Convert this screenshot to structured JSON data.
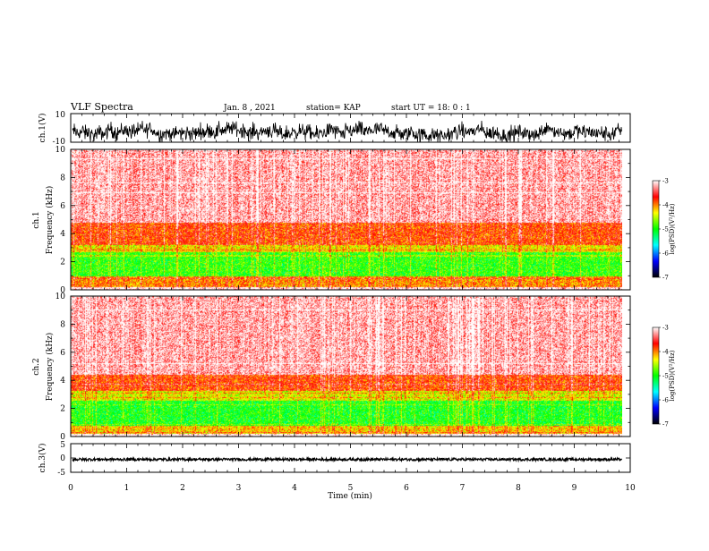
{
  "header": {
    "title": "VLF Spectra",
    "date": "Jan. 8 , 2021",
    "station": "station= KAP",
    "start": "start UT =  18: 0  : 1"
  },
  "chart_data": [
    {
      "type": "line",
      "panel": "ch1-waveform",
      "ylabel": "ch.1(V)",
      "ylim": [
        -10,
        10
      ],
      "yticks": [
        "10",
        "-10"
      ],
      "xlim": [
        0,
        10
      ],
      "data_end_min": 9.85,
      "trace": "dense noisy waveform fluctuating roughly between -10 and 9 V",
      "color": "#000000"
    },
    {
      "type": "heatmap",
      "panel": "ch1-spectrogram",
      "ylabel": "ch.1\nFrequency (kHz)",
      "ylim": [
        0,
        10
      ],
      "yticks": [
        "0",
        "2",
        "4",
        "6",
        "8",
        "10"
      ],
      "xlim": [
        0,
        10
      ],
      "bands": [
        {
          "from_khz": 0.2,
          "to_khz": 1.0,
          "level": -4.0
        },
        {
          "from_khz": 1.0,
          "to_khz": 2.7,
          "level": -4.9
        },
        {
          "from_khz": 2.7,
          "to_khz": 3.2,
          "level": -4.3
        },
        {
          "from_khz": 3.2,
          "to_khz": 4.8,
          "level": -3.8
        },
        {
          "from_khz": 4.8,
          "to_khz": 10.0,
          "level": -3.2
        }
      ],
      "colorbar": {
        "label": "log(PSD)(V²/Hz)",
        "range": [
          -7,
          -3
        ],
        "ticks": [
          "-3",
          "-4",
          "-5",
          "-6",
          "-7"
        ],
        "colors": [
          "#ffffff",
          "#ff0000",
          "#ffff00",
          "#00ff00",
          "#00ffff",
          "#0000ff",
          "#000000"
        ]
      }
    },
    {
      "type": "heatmap",
      "panel": "ch2-spectrogram",
      "ylabel": "ch.2\nFrequency (kHz)",
      "ylim": [
        0,
        10
      ],
      "yticks": [
        "0",
        "2",
        "4",
        "6",
        "8",
        "10"
      ],
      "xlim": [
        0,
        10
      ],
      "bands": [
        {
          "from_khz": 0.2,
          "to_khz": 0.8,
          "level": -4.2
        },
        {
          "from_khz": 0.8,
          "to_khz": 2.6,
          "level": -5.0
        },
        {
          "from_khz": 2.6,
          "to_khz": 3.3,
          "level": -4.4
        },
        {
          "from_khz": 3.3,
          "to_khz": 4.4,
          "level": -3.8
        },
        {
          "from_khz": 4.4,
          "to_khz": 10.0,
          "level": -3.2
        }
      ],
      "colorbar": {
        "label": "log(PSD)(V²/Hz)",
        "range": [
          -7,
          -3
        ],
        "ticks": [
          "-3",
          "-4",
          "-5",
          "-6",
          "-7"
        ],
        "colors": [
          "#ffffff",
          "#ff0000",
          "#ffff00",
          "#00ff00",
          "#00ffff",
          "#0000ff",
          "#000000"
        ]
      }
    },
    {
      "type": "line",
      "panel": "ch3-waveform",
      "ylabel": "ch.3(V)",
      "ylim": [
        -5,
        5
      ],
      "yticks": [
        "5",
        "0",
        "-5"
      ],
      "xlim": [
        0,
        10
      ],
      "data_end_min": 9.85,
      "trace": "dense near-constant waveform around -0.5 V",
      "color": "#000000",
      "xlabel": "Time (min)",
      "xticks": [
        "0",
        "1",
        "2",
        "3",
        "4",
        "5",
        "6",
        "7",
        "8",
        "9",
        "10"
      ]
    }
  ]
}
